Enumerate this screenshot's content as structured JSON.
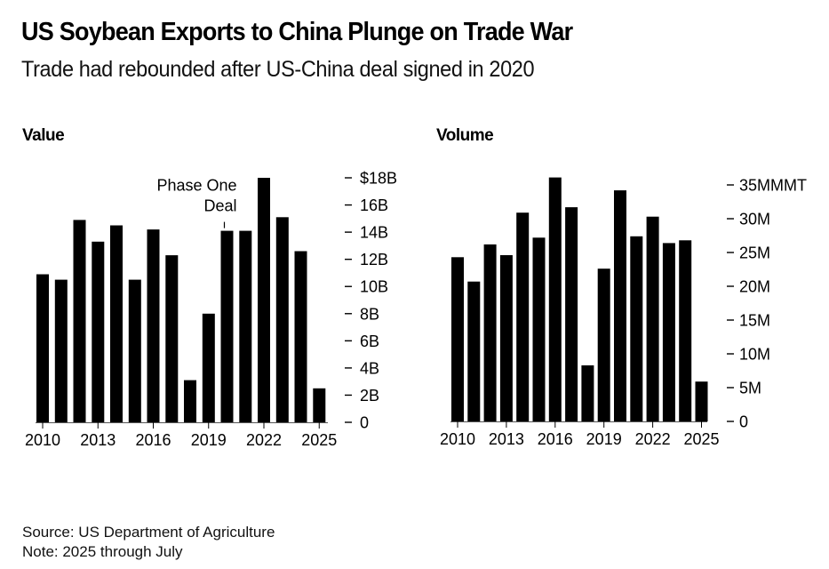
{
  "header": {
    "title": "US Soybean Exports to China Plunge on Trade War",
    "subtitle": "Trade had rebounded after US-China deal signed in 2020"
  },
  "footer": {
    "source": "Source: US Department of Agriculture",
    "note": "Note: 2025 through July"
  },
  "chart_data": [
    {
      "type": "bar",
      "title": "Value",
      "xlabel": "",
      "ylabel": "",
      "categories": [
        "2010",
        "2011",
        "2012",
        "2013",
        "2014",
        "2015",
        "2016",
        "2017",
        "2018",
        "2019",
        "2020",
        "2021",
        "2022",
        "2023",
        "2024",
        "2025"
      ],
      "values": [
        10.9,
        10.5,
        14.9,
        13.3,
        14.5,
        10.5,
        14.2,
        12.3,
        3.1,
        8.0,
        14.1,
        14.1,
        18.0,
        15.1,
        12.6,
        2.5
      ],
      "unit": "USD billions",
      "ylim": [
        0,
        18
      ],
      "yticks": [
        0,
        2,
        4,
        6,
        8,
        10,
        12,
        14,
        16,
        18
      ],
      "ytick_labels": [
        "0",
        "2B",
        "4B",
        "6B",
        "8B",
        "10B",
        "12B",
        "14B",
        "16B",
        "$18B"
      ],
      "xticks": [
        "2010",
        "2013",
        "2016",
        "2019",
        "2022",
        "2025"
      ],
      "axis_side": "right",
      "grid": false,
      "bar_color": "#000000",
      "annotation": {
        "text_lines": [
          "Phase One",
          "Deal"
        ],
        "at": "2020"
      }
    },
    {
      "type": "bar",
      "title": "Volume",
      "xlabel": "",
      "ylabel": "",
      "categories": [
        "2010",
        "2011",
        "2012",
        "2013",
        "2014",
        "2015",
        "2016",
        "2017",
        "2018",
        "2019",
        "2020",
        "2021",
        "2022",
        "2023",
        "2024",
        "2025"
      ],
      "values": [
        24.3,
        20.7,
        26.2,
        24.6,
        30.9,
        27.2,
        36.1,
        31.7,
        8.3,
        22.6,
        34.2,
        27.4,
        30.3,
        26.4,
        26.8,
        5.9
      ],
      "unit": "million metric tons",
      "ylim": [
        0,
        35
      ],
      "yticks": [
        0,
        5,
        10,
        15,
        20,
        25,
        30,
        35
      ],
      "ytick_labels": [
        "0",
        "5M",
        "10M",
        "15M",
        "20M",
        "25M",
        "30M",
        "35MMMT"
      ],
      "xticks": [
        "2010",
        "2013",
        "2016",
        "2019",
        "2022",
        "2025"
      ],
      "axis_side": "right",
      "grid": false,
      "bar_color": "#000000"
    }
  ]
}
